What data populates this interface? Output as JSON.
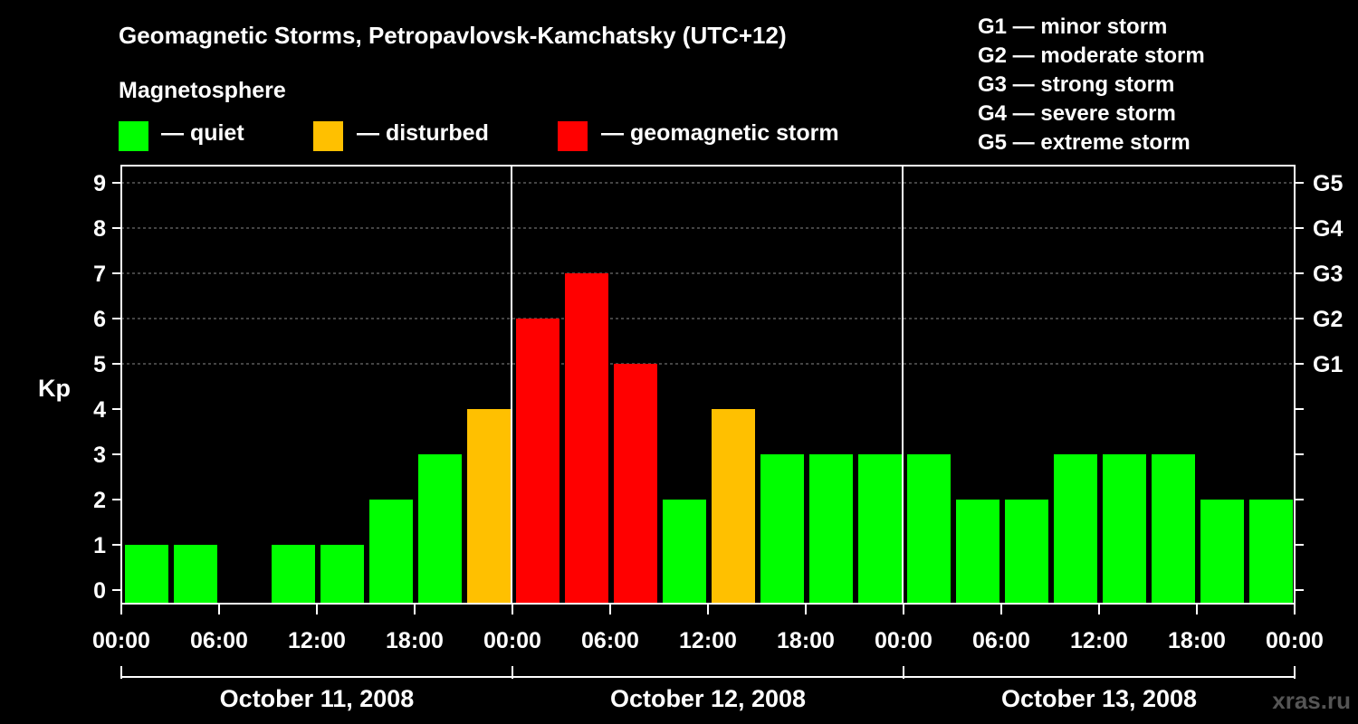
{
  "header": {
    "title": "Geomagnetic Storms, Petropavlovsk-Kamchatsky (UTC+12)",
    "legend_title": "Magnetosphere",
    "legend": [
      {
        "label": "— quiet",
        "color": "#00ff00"
      },
      {
        "label": "— disturbed",
        "color": "#ffc000"
      },
      {
        "label": "— geomagnetic storm",
        "color": "#ff0000"
      }
    ],
    "g_scale": [
      "G1 — minor storm",
      "G2 — moderate storm",
      "G3 — strong storm",
      "G4 — severe storm",
      "G5 — extreme storm"
    ]
  },
  "watermark": "xras.ru",
  "chart_data": {
    "type": "bar",
    "ylabel": "Kp",
    "ylim": [
      0,
      9
    ],
    "yticks": [
      "0",
      "1",
      "2",
      "3",
      "4",
      "5",
      "6",
      "7",
      "8",
      "9"
    ],
    "right_axis_labels": {
      "5": "G1",
      "6": "G2",
      "7": "G3",
      "8": "G4",
      "9": "G5"
    },
    "x_tick_labels": [
      "00:00",
      "06:00",
      "12:00",
      "18:00",
      "00:00",
      "06:00",
      "12:00",
      "18:00",
      "00:00",
      "06:00",
      "12:00",
      "18:00",
      "00:00"
    ],
    "days": [
      "October 11, 2008",
      "October 12, 2008",
      "October 13, 2008"
    ],
    "interval_hours": 3,
    "values": [
      1,
      1,
      0,
      1,
      1,
      2,
      3,
      4,
      6,
      7,
      5,
      2,
      4,
      3,
      3,
      3,
      3,
      2,
      2,
      3,
      3,
      3,
      2,
      2
    ],
    "colors": {
      "quiet": "#00ff00",
      "disturbed": "#ffc000",
      "storm": "#ff0000"
    },
    "grid": "dashed horizontal at 5-9"
  }
}
